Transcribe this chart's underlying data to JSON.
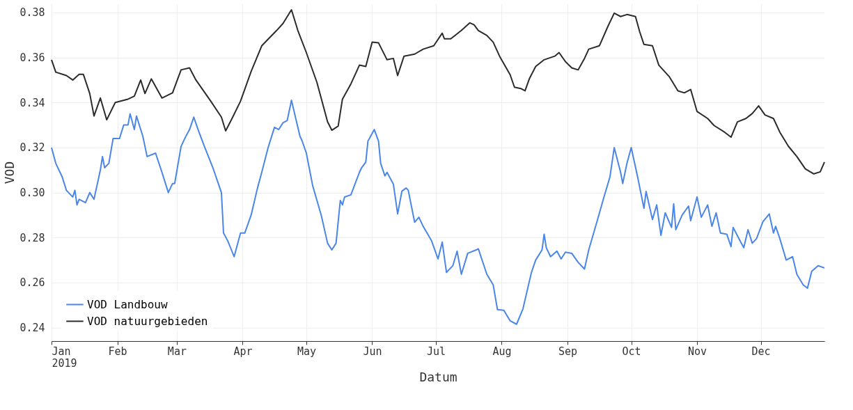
{
  "chart_data": {
    "type": "line",
    "xlabel": "Datum",
    "ylabel": "VOD",
    "xlim": [
      "2019-01-01",
      "2019-12-31"
    ],
    "xticks": [
      {
        "value": "2019-01-01",
        "label": "Jan\n2019"
      },
      {
        "value": "2019-02-01",
        "label": "Feb"
      },
      {
        "value": "2019-03-01",
        "label": "Mar"
      },
      {
        "value": "2019-04-01",
        "label": "Apr"
      },
      {
        "value": "2019-05-01",
        "label": "May"
      },
      {
        "value": "2019-06-01",
        "label": "Jun"
      },
      {
        "value": "2019-07-01",
        "label": "Jul"
      },
      {
        "value": "2019-08-01",
        "label": "Aug"
      },
      {
        "value": "2019-09-01",
        "label": "Sep"
      },
      {
        "value": "2019-10-01",
        "label": "Oct"
      },
      {
        "value": "2019-11-01",
        "label": "Nov"
      },
      {
        "value": "2019-12-01",
        "label": "Dec"
      }
    ],
    "ylim": [
      0.234,
      0.384
    ],
    "yticks": [
      {
        "value": 0.24,
        "label": "0.24"
      },
      {
        "value": 0.26,
        "label": "0.26"
      },
      {
        "value": 0.28,
        "label": "0.28"
      },
      {
        "value": 0.3,
        "label": "0.30"
      },
      {
        "value": 0.32,
        "label": "0.32"
      },
      {
        "value": 0.34,
        "label": "0.34"
      },
      {
        "value": 0.36,
        "label": "0.36"
      },
      {
        "value": 0.38,
        "label": "0.38"
      }
    ],
    "grid": true,
    "legend": "bottom left",
    "line_style": "solid",
    "marker": "none",
    "series": [
      {
        "name": "VOD Landbouw",
        "color": "#4a86e8",
        "x": [
          "2019-01-01",
          "2019-01-03",
          "2019-01-06",
          "2019-01-08",
          "2019-01-11",
          "2019-01-12",
          "2019-01-13",
          "2019-01-14",
          "2019-01-17",
          "2019-01-19",
          "2019-01-21",
          "2019-01-24",
          "2019-01-25",
          "2019-01-26",
          "2019-01-28",
          "2019-01-30",
          "2019-02-02",
          "2019-02-04",
          "2019-02-06",
          "2019-02-07",
          "2019-02-09",
          "2019-02-10",
          "2019-02-13",
          "2019-02-15",
          "2019-02-19",
          "2019-02-22",
          "2019-02-24",
          "2019-02-25",
          "2019-02-27",
          "2019-02-28",
          "2019-03-03",
          "2019-03-05",
          "2019-03-07",
          "2019-03-09",
          "2019-03-11",
          "2019-03-14",
          "2019-03-18",
          "2019-03-22",
          "2019-03-23",
          "2019-03-25",
          "2019-03-28",
          "2019-03-31",
          "2019-04-02",
          "2019-04-05",
          "2019-04-08",
          "2019-04-10",
          "2019-04-13",
          "2019-04-16",
          "2019-04-18",
          "2019-04-20",
          "2019-04-22",
          "2019-04-24",
          "2019-04-26",
          "2019-04-28",
          "2019-04-29",
          "2019-05-01",
          "2019-05-04",
          "2019-05-08",
          "2019-05-11",
          "2019-05-13",
          "2019-05-15",
          "2019-05-17",
          "2019-05-18",
          "2019-05-19",
          "2019-05-22",
          "2019-05-26",
          "2019-05-27",
          "2019-05-29",
          "2019-05-30",
          "2019-06-02",
          "2019-06-04",
          "2019-06-05",
          "2019-06-07",
          "2019-06-08",
          "2019-06-11",
          "2019-06-13",
          "2019-06-15",
          "2019-06-17",
          "2019-06-18",
          "2019-06-21",
          "2019-06-23",
          "2019-06-25",
          "2019-06-29",
          "2019-07-02",
          "2019-07-04",
          "2019-07-06",
          "2019-07-09",
          "2019-07-11",
          "2019-07-13",
          "2019-07-16",
          "2019-07-20",
          "2019-07-21",
          "2019-07-25",
          "2019-07-28",
          "2019-07-30",
          "2019-08-02",
          "2019-08-05",
          "2019-08-08",
          "2019-08-11",
          "2019-08-15",
          "2019-08-17",
          "2019-08-20",
          "2019-08-21",
          "2019-08-22",
          "2019-08-24",
          "2019-08-27",
          "2019-08-29",
          "2019-08-31",
          "2019-09-03",
          "2019-09-06",
          "2019-09-09",
          "2019-09-11",
          "2019-09-15",
          "2019-09-18",
          "2019-09-21",
          "2019-09-23",
          "2019-09-26",
          "2019-09-27",
          "2019-09-29",
          "2019-10-01",
          "2019-10-04",
          "2019-10-07",
          "2019-10-08",
          "2019-10-11",
          "2019-10-13",
          "2019-10-15",
          "2019-10-17",
          "2019-10-20",
          "2019-10-21",
          "2019-10-22",
          "2019-10-25",
          "2019-10-28",
          "2019-10-29",
          "2019-11-01",
          "2019-11-03",
          "2019-11-06",
          "2019-11-08",
          "2019-11-10",
          "2019-11-12",
          "2019-11-15",
          "2019-11-17",
          "2019-11-18",
          "2019-11-21",
          "2019-11-23",
          "2019-11-25",
          "2019-11-27",
          "2019-11-29",
          "2019-12-02",
          "2019-12-05",
          "2019-12-07",
          "2019-12-08",
          "2019-12-10",
          "2019-12-13",
          "2019-12-16",
          "2019-12-18",
          "2019-12-21",
          "2019-12-23",
          "2019-12-25",
          "2019-12-28",
          "2019-12-31"
        ],
        "values": [
          0.32,
          0.313,
          0.307,
          0.301,
          0.298,
          0.301,
          0.2945,
          0.297,
          0.2955,
          0.3,
          0.297,
          0.31,
          0.316,
          0.311,
          0.313,
          0.324,
          0.324,
          0.33,
          0.33,
          0.335,
          0.328,
          0.334,
          0.325,
          0.316,
          0.3175,
          0.309,
          0.303,
          0.3,
          0.304,
          0.304,
          0.3205,
          0.3245,
          0.328,
          0.3335,
          0.328,
          0.3205,
          0.311,
          0.3,
          0.282,
          0.2785,
          0.2715,
          0.282,
          0.282,
          0.29,
          0.302,
          0.309,
          0.32,
          0.329,
          0.328,
          0.331,
          0.332,
          0.341,
          0.333,
          0.325,
          0.323,
          0.3175,
          0.303,
          0.29,
          0.2775,
          0.2745,
          0.2775,
          0.2965,
          0.2945,
          0.298,
          0.299,
          0.309,
          0.311,
          0.3135,
          0.3228,
          0.328,
          0.3228,
          0.313,
          0.3074,
          0.309,
          0.3037,
          0.2905,
          0.3006,
          0.302,
          0.301,
          0.2868,
          0.289,
          0.285,
          0.2785,
          0.2705,
          0.278,
          0.2645,
          0.2675,
          0.274,
          0.2637,
          0.273,
          0.2745,
          0.275,
          0.2637,
          0.259,
          0.248,
          0.2477,
          0.243,
          0.2415,
          0.2483,
          0.2645,
          0.27,
          0.2745,
          0.2815,
          0.2755,
          0.2715,
          0.274,
          0.2705,
          0.2735,
          0.273,
          0.269,
          0.266,
          0.2745,
          0.2875,
          0.2975,
          0.307,
          0.32,
          0.309,
          0.304,
          0.313,
          0.32,
          0.307,
          0.293,
          0.3005,
          0.288,
          0.2945,
          0.281,
          0.291,
          0.2845,
          0.295,
          0.2835,
          0.29,
          0.294,
          0.2875,
          0.298,
          0.289,
          0.2945,
          0.285,
          0.291,
          0.282,
          0.2815,
          0.276,
          0.2845,
          0.279,
          0.2755,
          0.2835,
          0.2775,
          0.2795,
          0.287,
          0.2905,
          0.282,
          0.285,
          0.2795,
          0.27,
          0.2715,
          0.2637,
          0.259,
          0.2575,
          0.265,
          0.2675,
          0.2665
        ]
      },
      {
        "name": "VOD natuurgebieden",
        "color": "#2b2b2b",
        "x": [
          "2019-01-01",
          "2019-01-03",
          "2019-01-08",
          "2019-01-11",
          "2019-01-14",
          "2019-01-16",
          "2019-01-19",
          "2019-01-21",
          "2019-01-24",
          "2019-01-27",
          "2019-01-31",
          "2019-02-06",
          "2019-02-09",
          "2019-02-12",
          "2019-02-14",
          "2019-02-17",
          "2019-02-22",
          "2019-02-27",
          "2019-03-03",
          "2019-03-07",
          "2019-03-10",
          "2019-03-17",
          "2019-03-22",
          "2019-03-24",
          "2019-03-27",
          "2019-03-31",
          "2019-04-05",
          "2019-04-10",
          "2019-04-17",
          "2019-04-20",
          "2019-04-24",
          "2019-04-27",
          "2019-05-01",
          "2019-05-06",
          "2019-05-11",
          "2019-05-13",
          "2019-05-16",
          "2019-05-18",
          "2019-05-22",
          "2019-05-26",
          "2019-05-29",
          "2019-06-01",
          "2019-06-04",
          "2019-06-08",
          "2019-06-11",
          "2019-06-13",
          "2019-06-16",
          "2019-06-21",
          "2019-06-25",
          "2019-06-30",
          "2019-07-04",
          "2019-07-05",
          "2019-07-08",
          "2019-07-10",
          "2019-07-13",
          "2019-07-17",
          "2019-07-19",
          "2019-07-21",
          "2019-07-25",
          "2019-07-28",
          "2019-07-31",
          "2019-08-05",
          "2019-08-07",
          "2019-08-10",
          "2019-08-12",
          "2019-08-14",
          "2019-08-17",
          "2019-08-21",
          "2019-08-26",
          "2019-08-28",
          "2019-08-31",
          "2019-09-03",
          "2019-09-06",
          "2019-09-09",
          "2019-09-11",
          "2019-09-16",
          "2019-09-20",
          "2019-09-23",
          "2019-09-26",
          "2019-09-29",
          "2019-10-03",
          "2019-10-05",
          "2019-10-07",
          "2019-10-11",
          "2019-10-14",
          "2019-10-19",
          "2019-10-23",
          "2019-10-26",
          "2019-10-29",
          "2019-11-01",
          "2019-11-06",
          "2019-11-09",
          "2019-11-14",
          "2019-11-17",
          "2019-11-20",
          "2019-11-24",
          "2019-11-27",
          "2019-11-30",
          "2019-12-03",
          "2019-12-07",
          "2019-12-10",
          "2019-12-14",
          "2019-12-18",
          "2019-12-22",
          "2019-12-26",
          "2019-12-29",
          "2019-12-31"
        ],
        "values": [
          0.359,
          0.3535,
          0.352,
          0.35,
          0.3525,
          0.3525,
          0.344,
          0.334,
          0.342,
          0.3323,
          0.34,
          0.3415,
          0.3428,
          0.35,
          0.344,
          0.3505,
          0.342,
          0.3443,
          0.3545,
          0.3554,
          0.35,
          0.3406,
          0.3335,
          0.3274,
          0.3329,
          0.3406,
          0.3538,
          0.3652,
          0.372,
          0.3751,
          0.3812,
          0.372,
          0.3622,
          0.3489,
          0.3314,
          0.3277,
          0.3295,
          0.3415,
          0.3483,
          0.3566,
          0.356,
          0.3668,
          0.3665,
          0.359,
          0.3596,
          0.352,
          0.3606,
          0.3615,
          0.3637,
          0.3652,
          0.3708,
          0.3683,
          0.3683,
          0.3698,
          0.372,
          0.3754,
          0.3745,
          0.372,
          0.3698,
          0.3668,
          0.3606,
          0.3523,
          0.3468,
          0.3462,
          0.3452,
          0.3505,
          0.356,
          0.359,
          0.3606,
          0.3622,
          0.3582,
          0.3554,
          0.3545,
          0.3596,
          0.3637,
          0.3652,
          0.3738,
          0.3797,
          0.3782,
          0.3791,
          0.3782,
          0.3714,
          0.3658,
          0.3652,
          0.3566,
          0.3514,
          0.3452,
          0.3443,
          0.3458,
          0.336,
          0.3329,
          0.3298,
          0.3268,
          0.3246,
          0.3314,
          0.3329,
          0.3351,
          0.3385,
          0.3345,
          0.3329,
          0.3268,
          0.3206,
          0.316,
          0.3105,
          0.3083,
          0.3092,
          0.3135
        ]
      }
    ]
  }
}
